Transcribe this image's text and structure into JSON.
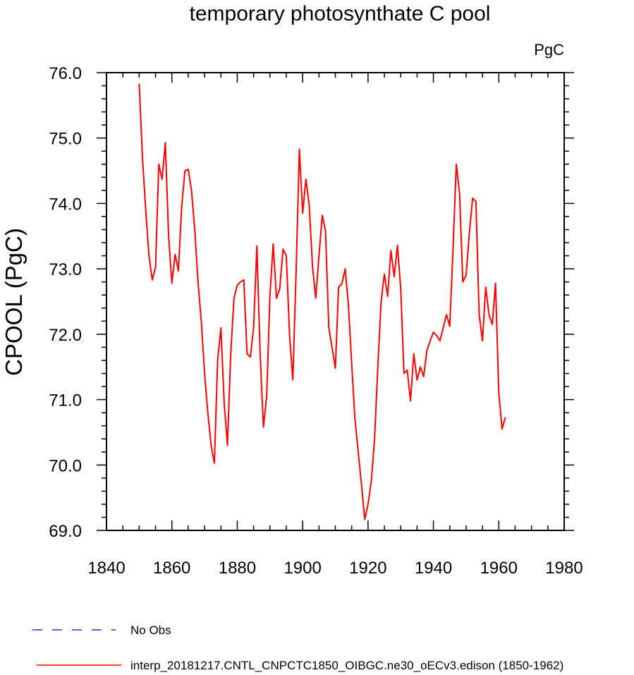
{
  "chart_data": {
    "type": "line",
    "title": "temporary photosynthate C pool",
    "units": "PgC",
    "xlabel": "",
    "ylabel": "CPOOL  (PgC)",
    "xlim": [
      1840,
      1980
    ],
    "ylim": [
      69.0,
      76.0
    ],
    "x_ticks": [
      "1840",
      "1860",
      "1880",
      "1900",
      "1920",
      "1940",
      "1960",
      "1980"
    ],
    "y_ticks": [
      "69.0",
      "70.0",
      "71.0",
      "72.0",
      "73.0",
      "74.0",
      "75.0",
      "76.0"
    ],
    "grid": false,
    "legend_position": "bottom",
    "series": [
      {
        "name": "No Obs",
        "legend_label": "No Obs",
        "color": "#0000ff",
        "dash": "dashed",
        "x": [],
        "values": []
      },
      {
        "name": "interp_20181217.CNTL_CNPCTC1850_OIBGC.ne30_oECv3.edison (1850-1962)",
        "legend_label": "interp_20181217.CNTL_CNPCTC1850_OIBGC.ne30_oECv3.edison (1850-1962)",
        "color": "#ff0000",
        "dash": "solid",
        "x_start": 1850,
        "values": [
          75.83,
          74.7,
          73.9,
          73.2,
          72.83,
          73.02,
          74.6,
          74.37,
          74.93,
          73.5,
          72.78,
          73.22,
          72.97,
          73.95,
          74.5,
          74.52,
          74.2,
          73.6,
          72.8,
          72.2,
          71.4,
          70.8,
          70.3,
          70.03,
          71.6,
          72.1,
          70.95,
          70.3,
          71.7,
          72.55,
          72.75,
          72.8,
          72.83,
          71.7,
          71.65,
          72.1,
          73.35,
          71.7,
          70.58,
          71.05,
          72.6,
          73.38,
          72.55,
          72.7,
          73.3,
          73.2,
          71.98,
          71.3,
          72.95,
          74.83,
          73.85,
          74.37,
          73.98,
          73.05,
          72.55,
          73.2,
          73.82,
          73.58,
          72.1,
          71.8,
          71.48,
          72.72,
          72.77,
          73.0,
          72.45,
          71.55,
          70.7,
          70.2,
          69.7,
          69.17,
          69.4,
          69.75,
          70.4,
          71.5,
          72.5,
          72.92,
          72.58,
          73.28,
          72.88,
          73.36,
          72.7,
          71.4,
          71.45,
          70.98,
          71.7,
          71.3,
          71.5,
          71.35,
          71.75,
          71.9,
          72.03,
          71.98,
          71.9,
          72.1,
          72.3,
          72.12,
          73.3,
          74.6,
          74.15,
          72.8,
          72.9,
          73.55,
          74.08,
          74.03,
          72.3,
          71.9,
          72.72,
          72.3,
          72.15,
          72.78,
          71.1,
          70.55,
          70.73
        ]
      }
    ]
  }
}
